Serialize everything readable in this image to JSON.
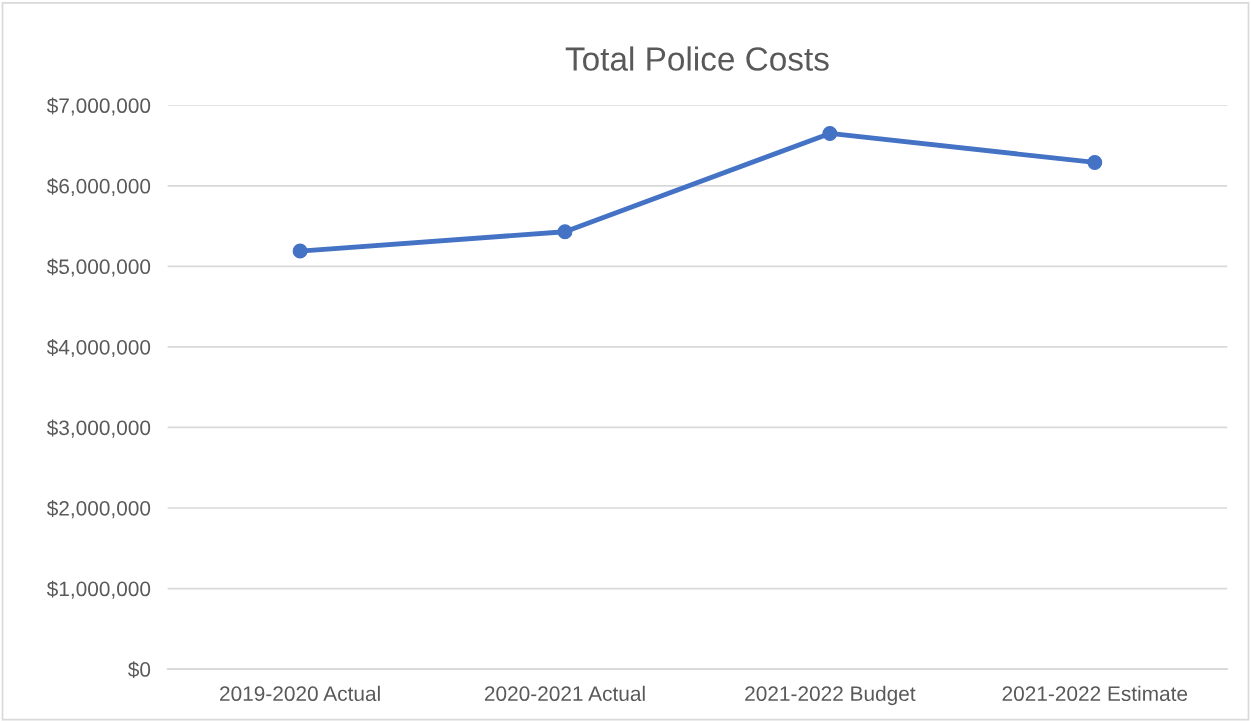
{
  "chart_data": {
    "type": "line",
    "title": "Total Police Costs",
    "categories": [
      "2019-2020 Actual",
      "2020-2021 Actual",
      "2021-2022 Budget",
      "2021-2022 Estimate"
    ],
    "series": [
      {
        "color": "#4472c4",
        "values": [
          5190000,
          5430000,
          6650000,
          6290000
        ]
      }
    ],
    "ylim": [
      0,
      7000000
    ],
    "yticks": [
      {
        "value": 0,
        "label": "$0"
      },
      {
        "value": 1000000,
        "label": "$1,000,000"
      },
      {
        "value": 2000000,
        "label": "$2,000,000"
      },
      {
        "value": 3000000,
        "label": "$3,000,000"
      },
      {
        "value": 4000000,
        "label": "$4,000,000"
      },
      {
        "value": 5000000,
        "label": "$5,000,000"
      },
      {
        "value": 6000000,
        "label": "$6,000,000"
      },
      {
        "value": 7000000,
        "label": "$7,000,000"
      }
    ],
    "grid": "y",
    "marker": "circle",
    "line_style": "solid"
  }
}
